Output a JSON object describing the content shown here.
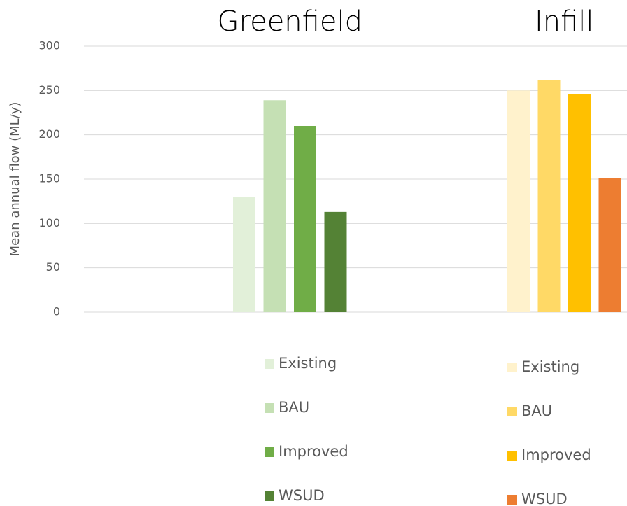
{
  "chart_data": {
    "type": "bar",
    "ylabel": "Mean annual flow (ML/y)",
    "ylim": [
      0,
      300
    ],
    "yticks": [
      0,
      50,
      100,
      150,
      200,
      250,
      300
    ],
    "grid": true,
    "groups": [
      {
        "title": "Greenfield",
        "series": [
          {
            "name": "Existing",
            "color": "#e2f0d9",
            "values": [
              130
            ]
          },
          {
            "name": "BAU",
            "color": "#c5e0b4",
            "values": [
              239
            ]
          },
          {
            "name": "Improved",
            "color": "#70ad47",
            "values": [
              210
            ]
          },
          {
            "name": "WSUD",
            "color": "#548235",
            "values": [
              113
            ]
          }
        ]
      },
      {
        "title": "Infill",
        "series": [
          {
            "name": "Existing",
            "color": "#fff2cc",
            "values": [
              250
            ]
          },
          {
            "name": "BAU",
            "color": "#ffd966",
            "values": [
              262
            ]
          },
          {
            "name": "Improved",
            "color": "#ffc000",
            "values": [
              246
            ]
          },
          {
            "name": "WSUD",
            "color": "#ed7d31",
            "values": [
              151
            ]
          }
        ]
      }
    ]
  }
}
